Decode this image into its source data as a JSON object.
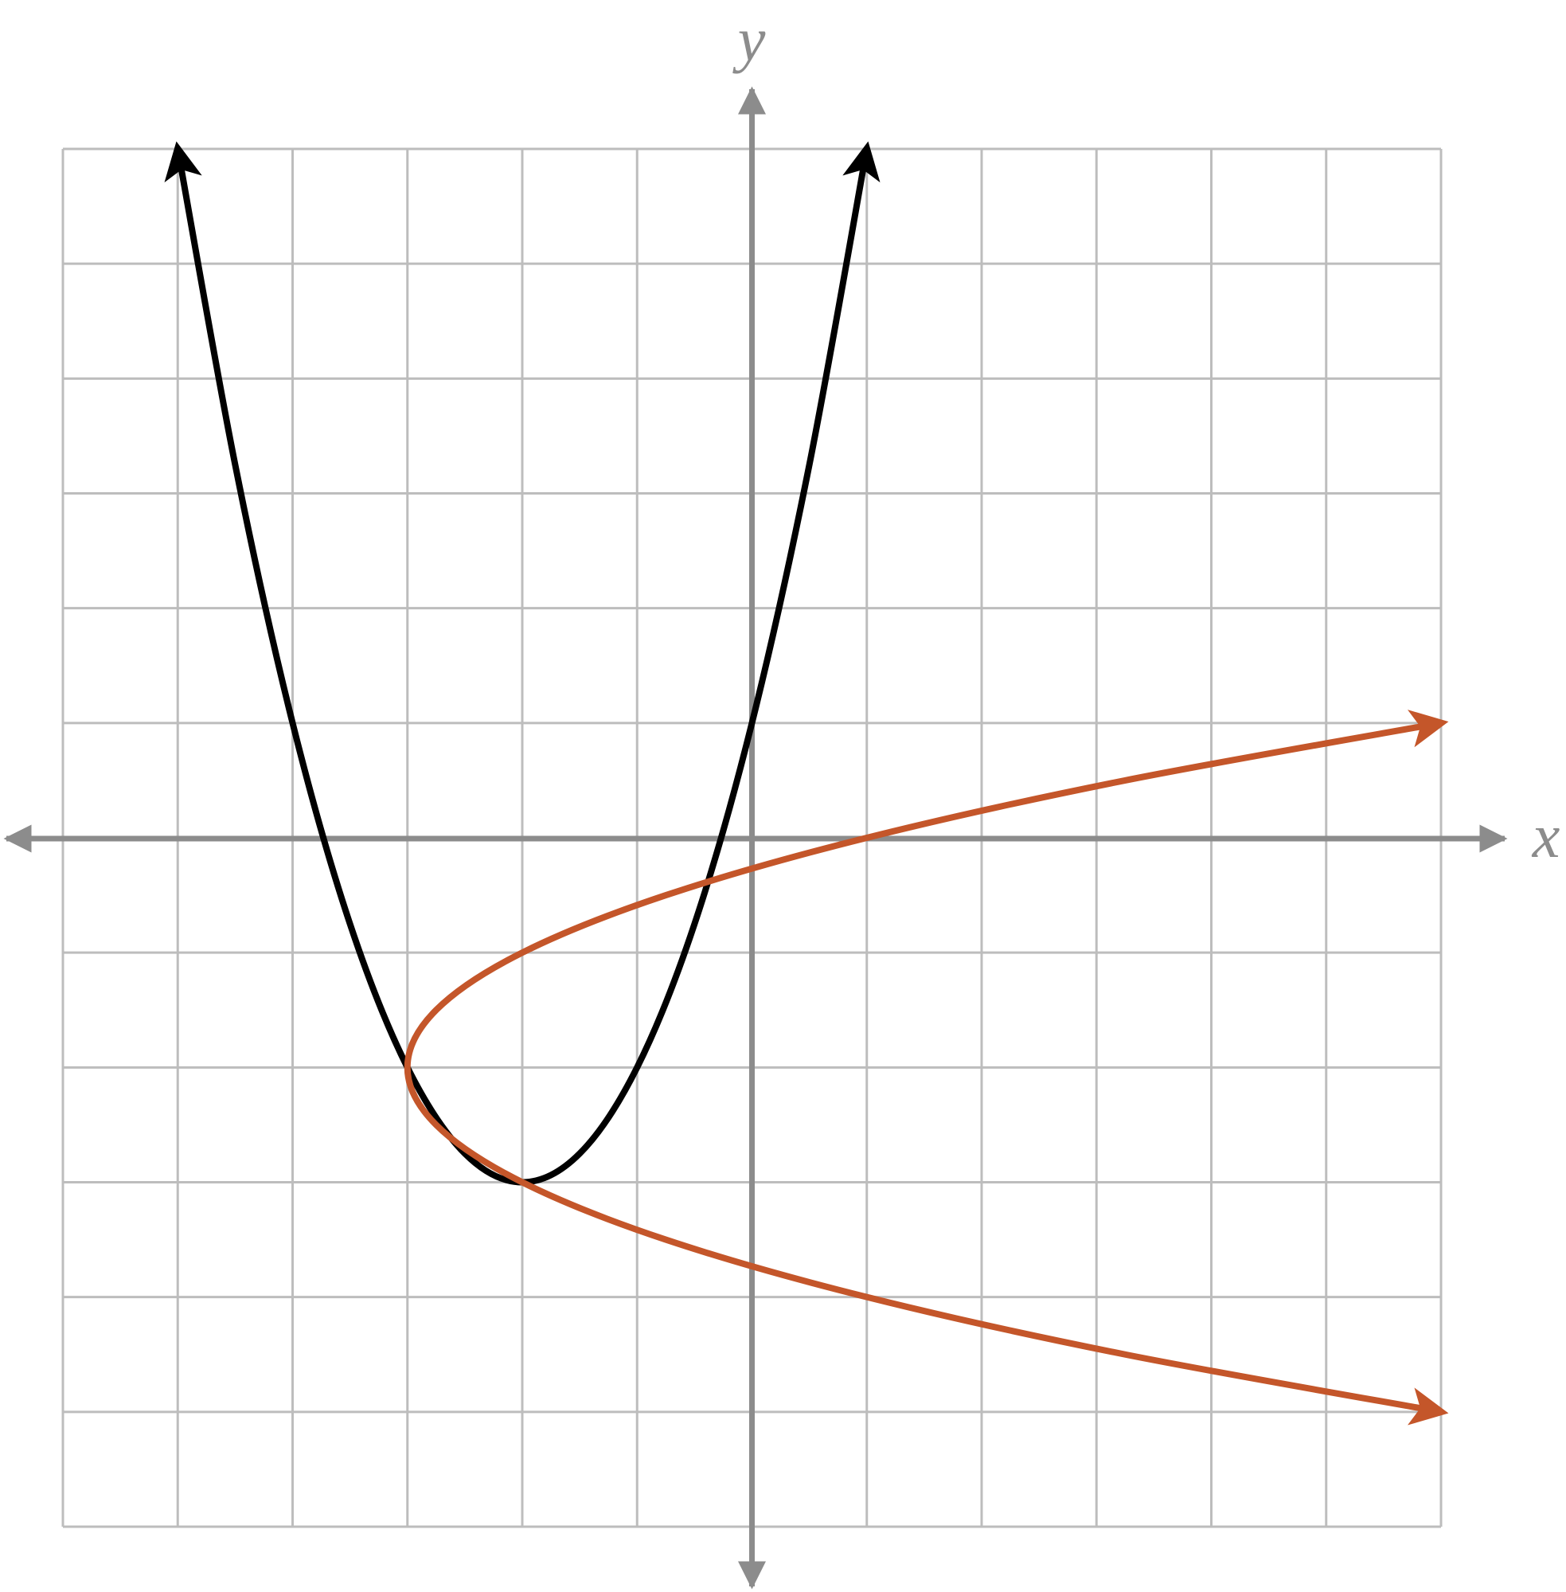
{
  "chart_data": {
    "type": "line",
    "xlabel": "x",
    "ylabel": "y",
    "xlim": [
      -6,
      6
    ],
    "ylim": [
      -6,
      6
    ],
    "xticks": [
      -6,
      -5,
      -4,
      -3,
      -2,
      -1,
      0,
      1,
      2,
      3,
      4,
      5,
      6
    ],
    "yticks": [
      -6,
      -5,
      -4,
      -3,
      -2,
      -1,
      0,
      1,
      2,
      3,
      4,
      5,
      6
    ],
    "grid": true,
    "series": [
      {
        "color": "#000000",
        "x": [
          -5,
          -4.5,
          -4,
          -3.5,
          -3,
          -2.5,
          -2,
          -1.5,
          -1,
          -0.5,
          0,
          0.5,
          1
        ],
        "values": [
          6,
          3.25,
          1,
          -0.75,
          -2,
          -2.75,
          -3,
          -2.75,
          -2,
          -0.75,
          1,
          3.25,
          6
        ]
      },
      {
        "color": "#c4562a",
        "x": [
          6,
          3.25,
          1,
          -0.75,
          -2,
          -2.75,
          -3,
          -2.75,
          -2,
          -0.75,
          1,
          3.25,
          6
        ],
        "values": [
          1,
          0.5,
          0,
          -0.5,
          -1,
          -1.5,
          -2,
          -2.5,
          -3,
          -3.5,
          -4,
          -4.5,
          -5
        ]
      }
    ]
  }
}
